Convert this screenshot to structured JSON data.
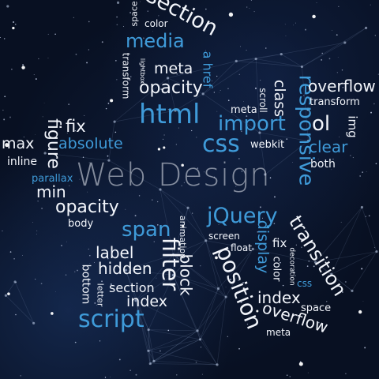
{
  "center_label": "Web Design",
  "words": {
    "section_top": "section",
    "space_top": "space",
    "color_top": "color",
    "media": "media",
    "a_href": "a href",
    "meta_top": "meta",
    "lightbox": "lightbox",
    "transform_left": "transform",
    "opacity_top": "opacity",
    "html": "html",
    "responsive": "responsive",
    "class": "class",
    "scroll": "scroll",
    "meta_mid": "meta",
    "overflow_top": "overflow",
    "transform_right": "transform",
    "import": "import",
    "img": "img",
    "ol": "ol",
    "css_mid": "css",
    "webkit": "webkit",
    "clear": "clear",
    "both": "both",
    "figure": "figure",
    "fix_left": "fix",
    "max": "max",
    "absolute": "absolute",
    "inline": "inline",
    "parallax": "parallax",
    "min": "min",
    "opacity_left": "opacity",
    "body": "body",
    "span": "span",
    "animation": "animation",
    "filter": "filter",
    "block": "block",
    "label": "label",
    "hidden": "hidden",
    "bottom": "bottom",
    "letter": "letter",
    "section_low": "section",
    "index_left": "index",
    "script": "script",
    "jquery": "jQuery",
    "screen": "screen",
    "float": "float",
    "display": "display",
    "fix_right": "fix",
    "color_right": "color",
    "decoration": "decoration",
    "css_low": "css",
    "transition": "transition",
    "position": "position",
    "index_right": "index",
    "space_right": "space",
    "overflow_low": "overflow",
    "meta_low": "meta"
  },
  "colors": {
    "background": "#081022",
    "word_white": "#f2f5fb",
    "word_blue": "#3f9bd9",
    "center_label": "rgba(210,215,225,0.60)"
  }
}
